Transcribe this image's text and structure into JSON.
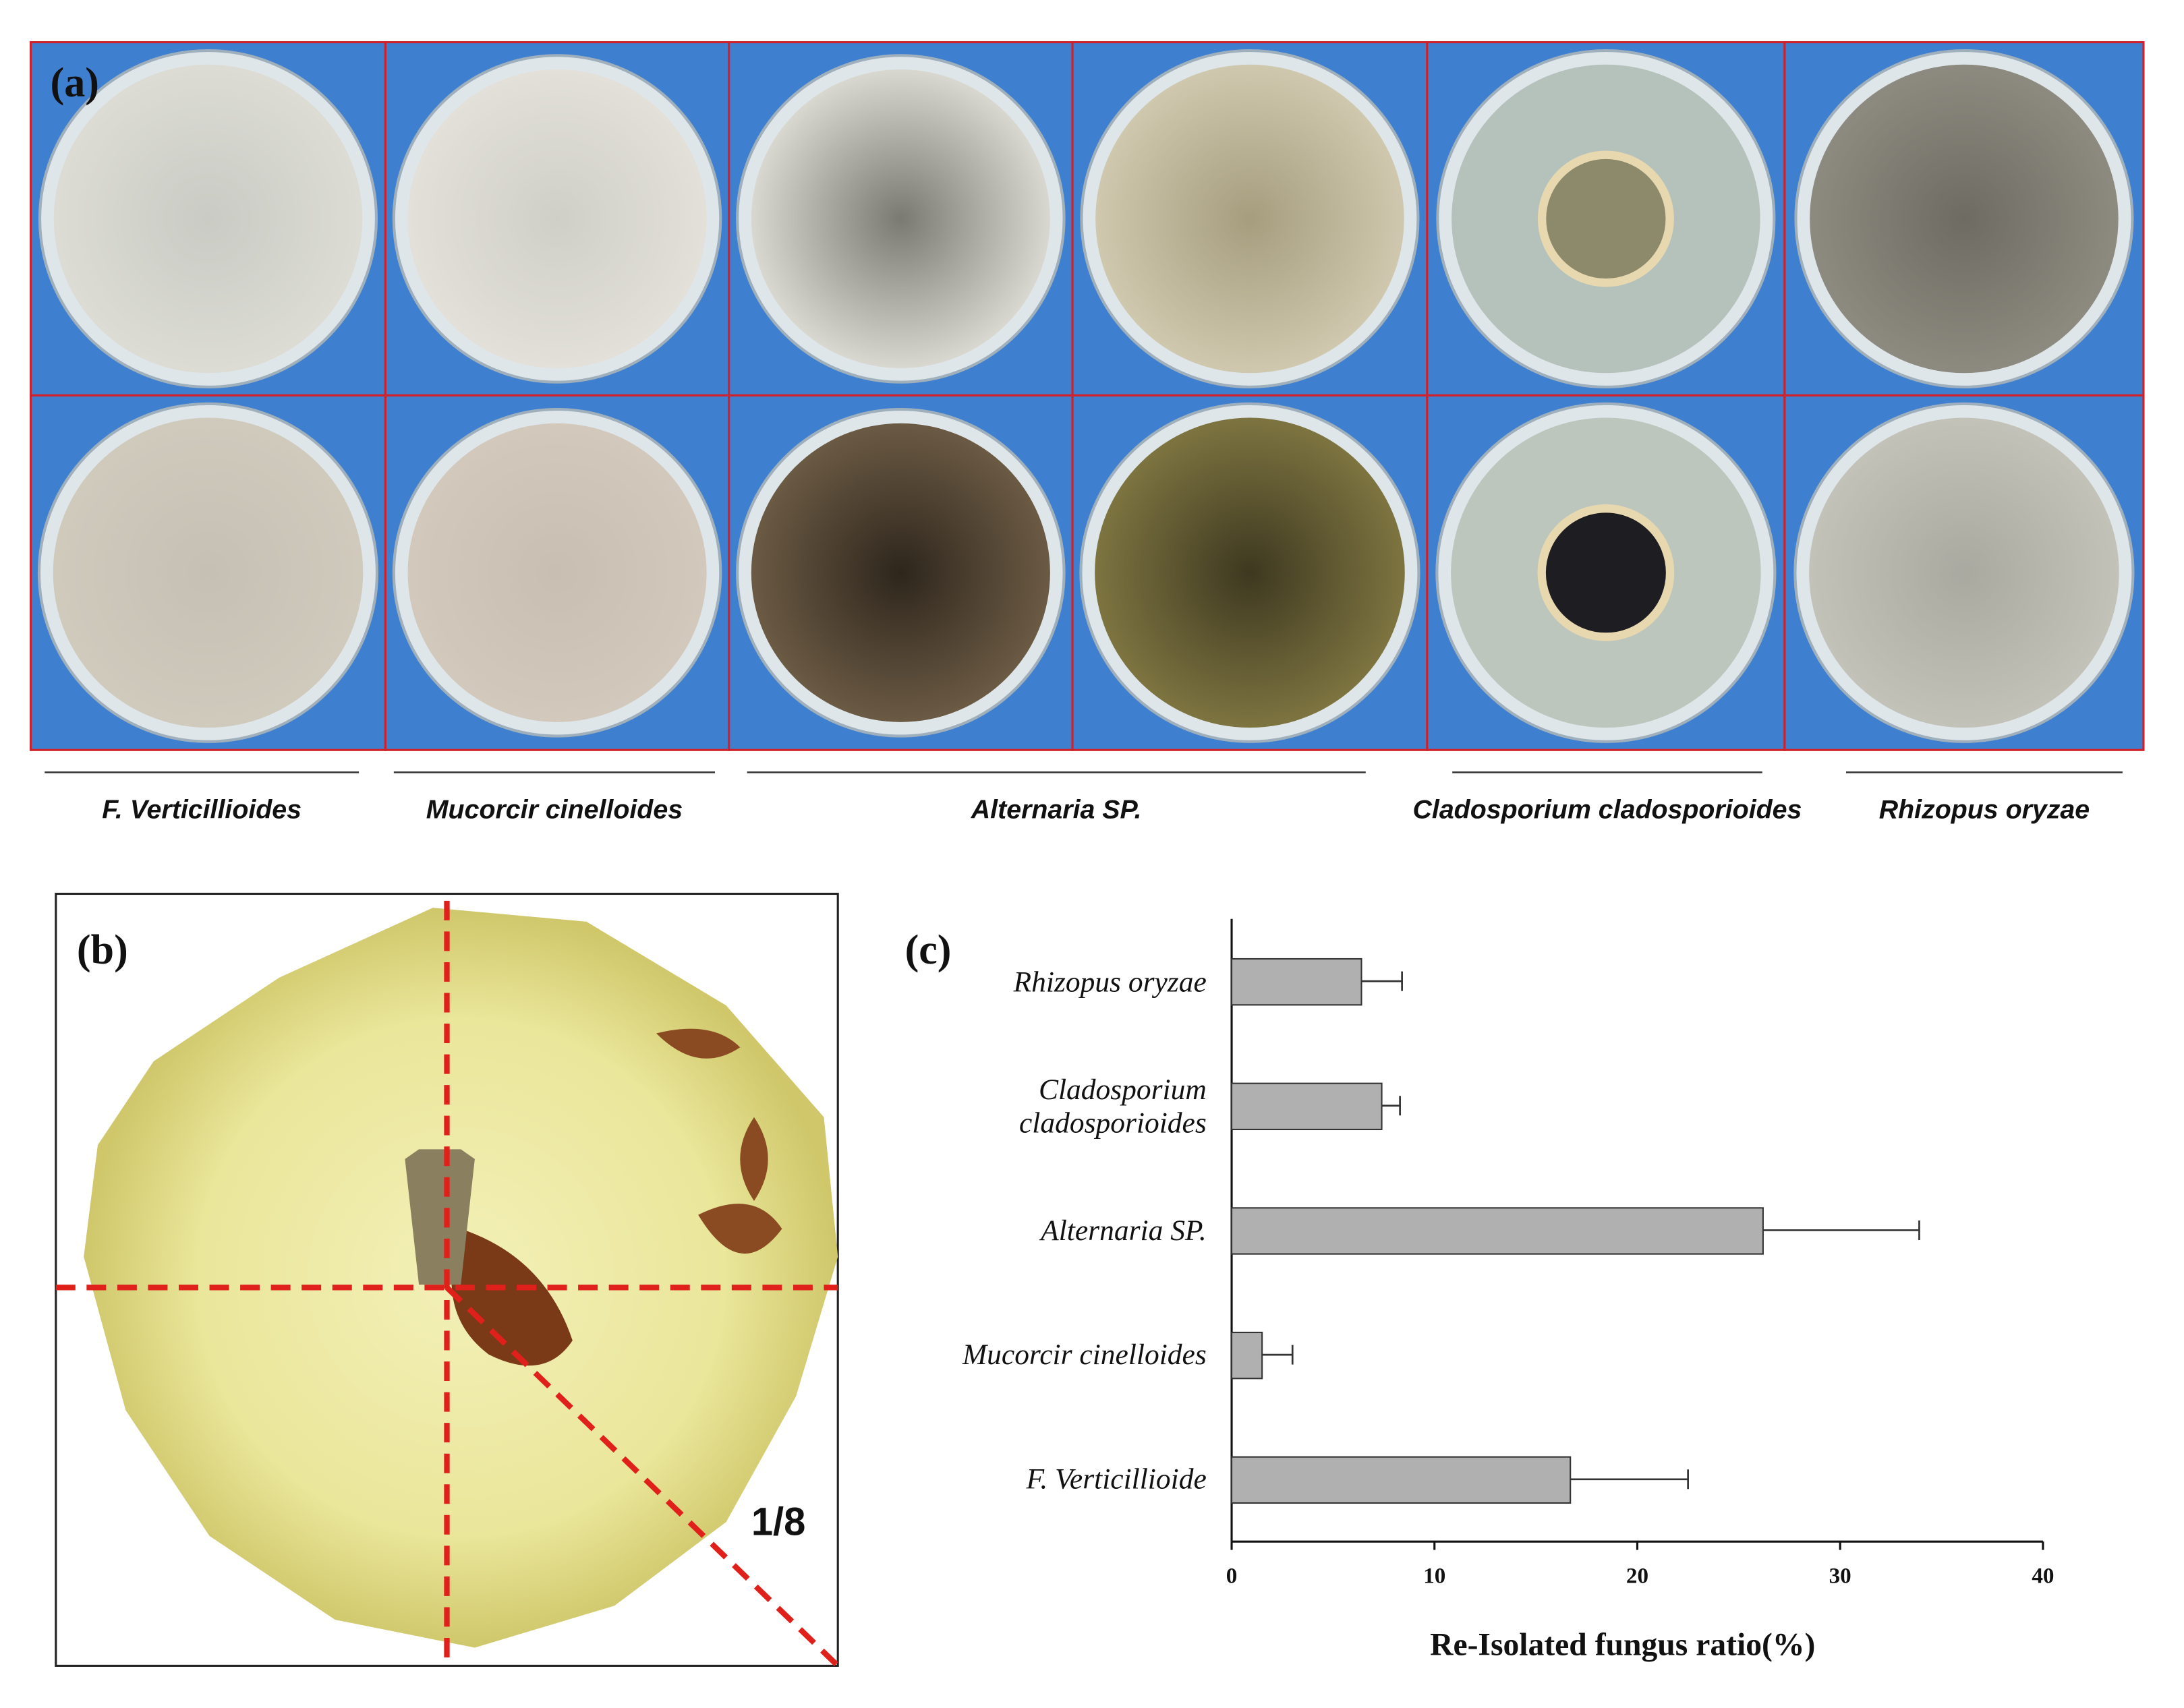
{
  "panel_a": {
    "label": "(a)",
    "species": [
      "F. Verticillioides",
      "Mucorcir cinelloides",
      "Alternaria SP.",
      "Cladosporium  cladosporioides",
      "Rhizopus oryzae"
    ]
  },
  "panel_b": {
    "label": "(b)",
    "annotation": "1/8"
  },
  "chart_data": {
    "type": "hbar",
    "panel_label": "(c)",
    "categories": [
      "Rhizopus oryzae",
      "Cladosporium cladosporioides",
      "Alternaria SP.",
      "Mucorcir cinelloides",
      "F. Verticillioide"
    ],
    "values": [
      6.4,
      7.4,
      26.2,
      1.5,
      16.7
    ],
    "errors": [
      2.0,
      0.9,
      7.7,
      1.5,
      5.8
    ],
    "color": "#b0b0b0",
    "xlabel": "Re-Isolated fungus ratio(%)",
    "xlim": [
      0,
      40
    ],
    "xticks": [
      0,
      10,
      20,
      30,
      40
    ]
  }
}
